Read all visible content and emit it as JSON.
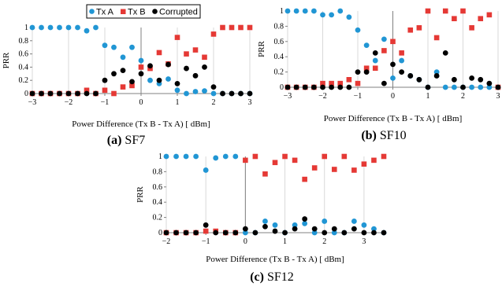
{
  "legend": {
    "entries": [
      {
        "name": "Tx A",
        "color": "#2196d4",
        "marker": "circle"
      },
      {
        "name": "Tx B",
        "color": "#e53935",
        "marker": "square"
      },
      {
        "name": "Corrupted",
        "color": "#000000",
        "marker": "circle"
      }
    ],
    "placement": "top-center"
  },
  "chart_data": [
    {
      "type": "scatter",
      "panel_letter": "(a)",
      "panel_name": "SF7",
      "xlabel": "Power Difference (Tx B - Tx A) [ dBm]",
      "ylabel": "PRR",
      "xlim": [
        -3,
        3
      ],
      "ylim": [
        0,
        1
      ],
      "xticks": [
        -3,
        -2,
        -1,
        0,
        1,
        2,
        3
      ],
      "yticks": [
        0,
        0.2,
        0.4,
        0.6,
        0.8,
        1
      ],
      "ytick_labels": [
        "0",
        "0.2",
        "0.4",
        "0.6",
        "0.8",
        "1"
      ],
      "grid": "vertical",
      "series": [
        {
          "name": "Tx A",
          "color": "#2196d4",
          "marker": "circle",
          "x": [
            -3,
            -2.75,
            -2.5,
            -2.25,
            -2,
            -1.75,
            -1.5,
            -1.25,
            -1,
            -0.75,
            -0.5,
            -0.25,
            0,
            0.25,
            0.5,
            0.75,
            1,
            1.25,
            1.5,
            1.75,
            2,
            2.25,
            2.5,
            2.75,
            3
          ],
          "y": [
            1,
            1,
            1,
            1,
            1,
            1,
            0.95,
            1,
            0.73,
            0.7,
            0.55,
            0.7,
            0.5,
            0.2,
            0.15,
            0.22,
            0.05,
            0.0,
            0.03,
            0.04,
            0,
            0,
            0,
            0,
            0
          ]
        },
        {
          "name": "Tx B",
          "color": "#e53935",
          "marker": "square",
          "x": [
            -3,
            -2.75,
            -2.5,
            -2.25,
            -2,
            -1.75,
            -1.5,
            -1.25,
            -1,
            -0.75,
            -0.5,
            -0.25,
            0,
            0.25,
            0.5,
            0.75,
            1,
            1.25,
            1.5,
            1.75,
            2,
            2.25,
            2.5,
            2.75,
            3
          ],
          "y": [
            0,
            0,
            0,
            0,
            0,
            0,
            0.05,
            0,
            0.05,
            0.0,
            0.1,
            0.12,
            0.4,
            0.38,
            0.62,
            0.45,
            0.85,
            0.6,
            0.66,
            0.55,
            0.9,
            1,
            1,
            1,
            1
          ]
        },
        {
          "name": "Corrupted",
          "color": "#000000",
          "marker": "circle",
          "x": [
            -3,
            -2.75,
            -2.5,
            -2.25,
            -2,
            -1.75,
            -1.5,
            -1.25,
            -1,
            -0.75,
            -0.5,
            -0.25,
            0,
            0.25,
            0.5,
            0.75,
            1,
            1.25,
            1.5,
            1.75,
            2,
            2.25,
            2.5,
            2.75,
            3
          ],
          "y": [
            0,
            0,
            0,
            0,
            0,
            0,
            0,
            0,
            0.2,
            0.3,
            0.35,
            0.18,
            0.3,
            0.42,
            0.2,
            0.44,
            0.15,
            0.38,
            0.27,
            0.4,
            0.1,
            0,
            0,
            0,
            0
          ]
        }
      ]
    },
    {
      "type": "scatter",
      "panel_letter": "(b)",
      "panel_name": "SF10",
      "xlabel": "Power Difference (Tx B - Tx A) [ dBm]",
      "ylabel": "PRR",
      "xlim": [
        -3,
        3
      ],
      "ylim": [
        0,
        1
      ],
      "xticks": [
        -3,
        -2,
        -1,
        0,
        1,
        2,
        3
      ],
      "yticks": [
        0,
        0.2,
        0.4,
        0.6,
        0.8,
        1
      ],
      "ytick_labels": [
        "0",
        "0.2",
        "0.4",
        "0.6",
        "0.8",
        "1"
      ],
      "grid": "vertical",
      "series": [
        {
          "name": "Tx A",
          "color": "#2196d4",
          "marker": "circle",
          "x": [
            -3,
            -2.75,
            -2.5,
            -2.25,
            -2,
            -1.75,
            -1.5,
            -1.25,
            -1,
            -0.75,
            -0.5,
            -0.25,
            0,
            0.25,
            0.5,
            0.75,
            1,
            1.25,
            1.5,
            1.75,
            2,
            2.25,
            2.5,
            2.75,
            3
          ],
          "y": [
            1,
            1,
            1,
            1,
            0.95,
            0.95,
            1,
            0.92,
            0.75,
            0.55,
            0.35,
            0.63,
            0.12,
            0.35,
            0.15,
            0.1,
            0,
            0.2,
            0,
            0,
            0,
            0,
            0,
            0,
            0
          ]
        },
        {
          "name": "Tx B",
          "color": "#e53935",
          "marker": "square",
          "x": [
            -3,
            -2.75,
            -2.5,
            -2.25,
            -2,
            -1.75,
            -1.5,
            -1.25,
            -1,
            -0.75,
            -0.5,
            -0.25,
            0,
            0.25,
            0.5,
            0.75,
            1,
            1.25,
            1.5,
            1.75,
            2,
            2.25,
            2.5,
            2.75,
            3
          ],
          "y": [
            0,
            0,
            0,
            0,
            0.05,
            0.05,
            0.05,
            0.1,
            0.05,
            0.25,
            0.25,
            0.48,
            0.6,
            0.45,
            0.75,
            0.78,
            1,
            0.65,
            1,
            0.9,
            1,
            0.78,
            0.9,
            0.95,
            0
          ]
        },
        {
          "name": "Corrupted",
          "color": "#000000",
          "marker": "circle",
          "x": [
            -3,
            -2.75,
            -2.5,
            -2.25,
            -2,
            -1.75,
            -1.5,
            -1.25,
            -1,
            -0.75,
            -0.5,
            -0.25,
            0,
            0.25,
            0.5,
            0.75,
            1,
            1.25,
            1.5,
            1.75,
            2,
            2.25,
            2.5,
            2.75,
            3
          ],
          "y": [
            0,
            0,
            0,
            0,
            0,
            0,
            0,
            0,
            0.2,
            0.2,
            0.45,
            0.05,
            0.3,
            0.2,
            0.15,
            0.1,
            0,
            0.15,
            0.45,
            0.1,
            0,
            0.12,
            0.1,
            0.05,
            0
          ]
        }
      ]
    },
    {
      "type": "scatter",
      "panel_letter": "(c)",
      "panel_name": "SF12",
      "xlabel": "Power Difference (Tx B - Tx A) [ dBm]",
      "ylabel": "PRR",
      "xlim": [
        -2,
        3.5
      ],
      "ylim": [
        0,
        1
      ],
      "xticks": [
        -2,
        -1,
        0,
        1,
        2,
        3
      ],
      "yticks": [
        0,
        0.2,
        0.4,
        0.6,
        0.8,
        1
      ],
      "ytick_labels": [
        "0",
        "0.2",
        "0.4",
        "0.6",
        "0.8",
        "1"
      ],
      "grid": "vertical",
      "series": [
        {
          "name": "Tx A",
          "color": "#2196d4",
          "marker": "circle",
          "x": [
            -2,
            -1.75,
            -1.5,
            -1.25,
            -1,
            -0.75,
            -0.5,
            -0.25,
            0,
            0.25,
            0.5,
            0.75,
            1,
            1.25,
            1.5,
            1.75,
            2,
            2.25,
            2.5,
            2.75,
            3,
            3.25,
            3.5
          ],
          "y": [
            1,
            1,
            1,
            1,
            0.82,
            0.98,
            1,
            1,
            0,
            0,
            0.15,
            0.1,
            0,
            0.1,
            0.12,
            0,
            0.15,
            0,
            0,
            0.15,
            0.1,
            0.05,
            0
          ]
        },
        {
          "name": "Tx B",
          "color": "#e53935",
          "marker": "square",
          "x": [
            -2,
            -1.75,
            -1.5,
            -1.25,
            -1,
            -0.75,
            -0.5,
            -0.25,
            0,
            0.25,
            0.5,
            0.75,
            1,
            1.25,
            1.5,
            1.75,
            2,
            2.25,
            2.5,
            2.75,
            3,
            3.25,
            3.5
          ],
          "y": [
            0,
            0,
            0,
            0,
            0.02,
            0.02,
            0,
            0,
            0.95,
            1,
            0.77,
            0.92,
            1,
            0.95,
            0.7,
            0.85,
            1,
            0.83,
            1,
            0.82,
            0.9,
            0.95,
            1
          ]
        },
        {
          "name": "Corrupted",
          "color": "#000000",
          "marker": "circle",
          "x": [
            -2,
            -1.75,
            -1.5,
            -1.25,
            -1,
            -0.75,
            -0.5,
            -0.25,
            0,
            0.25,
            0.5,
            0.75,
            1,
            1.25,
            1.5,
            1.75,
            2,
            2.25,
            2.5,
            2.75,
            3,
            3.25,
            3.5
          ],
          "y": [
            0,
            0,
            0,
            0,
            0.1,
            0,
            0,
            0,
            0.05,
            0,
            0.08,
            0.02,
            0,
            0.05,
            0.18,
            0.05,
            0,
            0.05,
            0,
            0.05,
            0,
            0,
            0
          ]
        }
      ]
    }
  ]
}
